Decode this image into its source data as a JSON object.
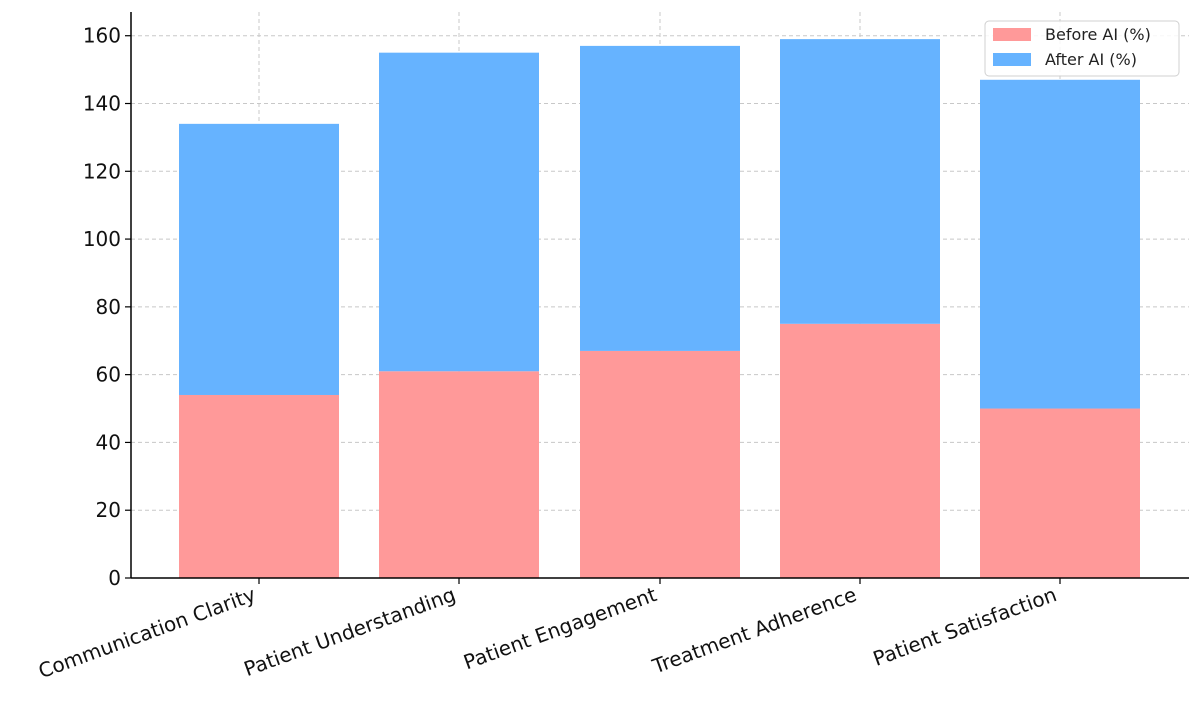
{
  "chart_data": {
    "type": "bar",
    "stacked": true,
    "categories": [
      "Communication Clarity",
      "Patient Understanding",
      "Patient Engagement",
      "Treatment Adherence",
      "Patient Satisfaction"
    ],
    "series": [
      {
        "name": "Before AI (%)",
        "color": "#ff9999",
        "values": [
          54,
          61,
          67,
          75,
          50
        ]
      },
      {
        "name": "After AI (%)",
        "color": "#66b3ff",
        "values": [
          80,
          94,
          90,
          84,
          97
        ]
      }
    ],
    "title": "",
    "xlabel": "",
    "ylabel": "",
    "ylim": [
      0,
      167
    ],
    "yticks": [
      0,
      20,
      40,
      60,
      80,
      100,
      120,
      140,
      160
    ],
    "grid": true,
    "legend_position": "top-right"
  }
}
